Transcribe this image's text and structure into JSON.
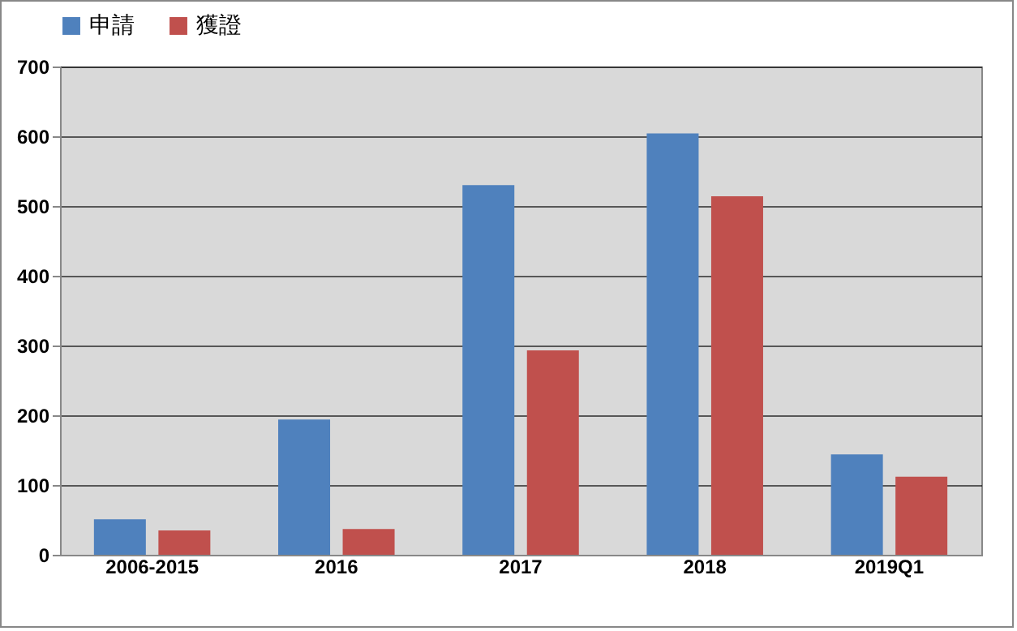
{
  "chart_data": {
    "type": "bar",
    "categories": [
      "2006-2015",
      "2016",
      "2017",
      "2018",
      "2019Q1"
    ],
    "series": [
      {
        "name": "申請",
        "color": "#4f81bd",
        "values": [
          51,
          194,
          530,
          604,
          144
        ]
      },
      {
        "name": "獲證",
        "color": "#c0504d",
        "values": [
          35,
          37,
          293,
          514,
          112
        ]
      }
    ],
    "ylim": [
      0,
      700
    ],
    "yticks": [
      0,
      100,
      200,
      300,
      400,
      500,
      600,
      700
    ],
    "grid": "y",
    "legend": "top"
  }
}
